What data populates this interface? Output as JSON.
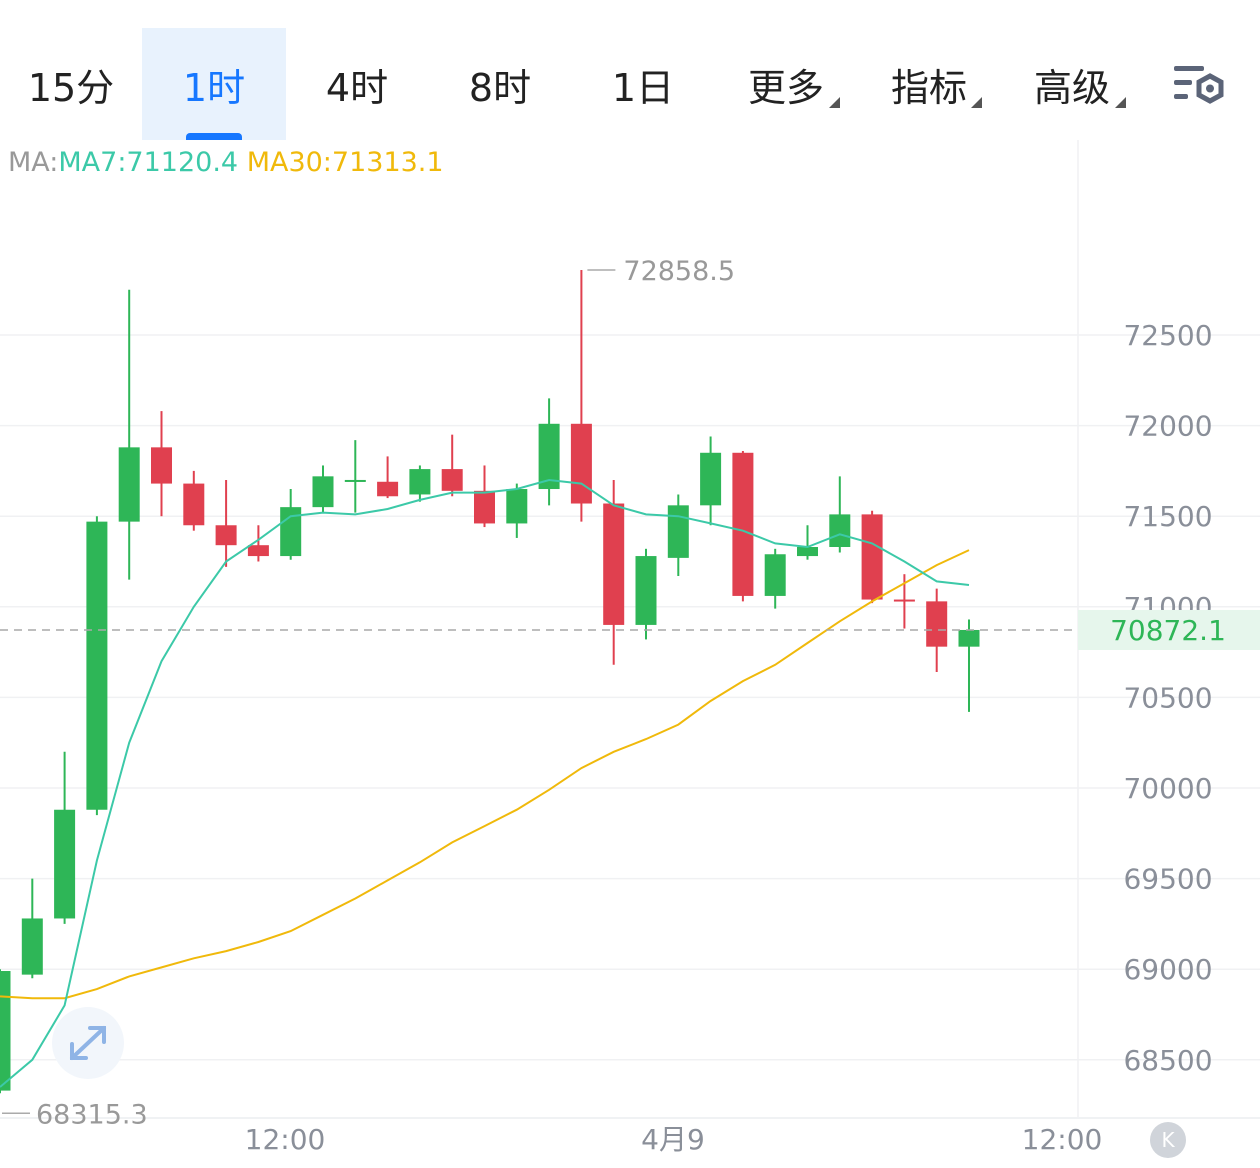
{
  "tabs": [
    {
      "label": "15分",
      "active": false,
      "dropdown": false
    },
    {
      "label": "1时",
      "active": true,
      "dropdown": false
    },
    {
      "label": "4时",
      "active": false,
      "dropdown": false
    },
    {
      "label": "8时",
      "active": false,
      "dropdown": false
    },
    {
      "label": "1日",
      "active": false,
      "dropdown": false
    },
    {
      "label": "更多",
      "active": false,
      "dropdown": true
    },
    {
      "label": "指标",
      "active": false,
      "dropdown": true
    },
    {
      "label": "高级",
      "active": false,
      "dropdown": true
    }
  ],
  "icons": {
    "settings": "chart-settings-icon",
    "expand": "expand-icon",
    "k": "k-logo-icon"
  },
  "ma": {
    "label": "MA:",
    "ma7": "MA7:71120.4",
    "ma30": "MA30:71313.1"
  },
  "colors": {
    "up": "#2eb657",
    "down": "#e0404f",
    "ma7": "#3cc9a8",
    "ma30": "#f0b90b",
    "accent": "#1677ff",
    "current_price_bg": "#e6f6ec"
  },
  "chart_data": {
    "type": "candlestick",
    "ylim": [
      68150,
      73000
    ],
    "y_ticks": [
      68500,
      69000,
      69500,
      70000,
      70500,
      71000,
      71500,
      72000,
      72500
    ],
    "x_labels": [
      "12:00",
      "4月9",
      "12:00"
    ],
    "current_price": "70872.1",
    "high_label": "72858.5",
    "low_label": "68315.3",
    "candles": [
      {
        "o": 68330,
        "h": 69000,
        "l": 68315.3,
        "c": 68990
      },
      {
        "o": 68970,
        "h": 69500,
        "l": 68950,
        "c": 69280
      },
      {
        "o": 69280,
        "h": 70200,
        "l": 69250,
        "c": 69880
      },
      {
        "o": 69880,
        "h": 71500,
        "l": 69850,
        "c": 71470
      },
      {
        "o": 71470,
        "h": 72750,
        "l": 71150,
        "c": 71880
      },
      {
        "o": 71880,
        "h": 72080,
        "l": 71500,
        "c": 71680
      },
      {
        "o": 71680,
        "h": 71750,
        "l": 71420,
        "c": 71450
      },
      {
        "o": 71450,
        "h": 71700,
        "l": 71220,
        "c": 71340
      },
      {
        "o": 71340,
        "h": 71450,
        "l": 71250,
        "c": 71280
      },
      {
        "o": 71280,
        "h": 71650,
        "l": 71260,
        "c": 71550
      },
      {
        "o": 71550,
        "h": 71780,
        "l": 71520,
        "c": 71720
      },
      {
        "o": 71700,
        "h": 71920,
        "l": 71520,
        "c": 71700
      },
      {
        "o": 71690,
        "h": 71830,
        "l": 71600,
        "c": 71610
      },
      {
        "o": 71620,
        "h": 71780,
        "l": 71580,
        "c": 71760
      },
      {
        "o": 71760,
        "h": 71950,
        "l": 71610,
        "c": 71640
      },
      {
        "o": 71640,
        "h": 71780,
        "l": 71440,
        "c": 71460
      },
      {
        "o": 71460,
        "h": 71680,
        "l": 71380,
        "c": 71650
      },
      {
        "o": 71650,
        "h": 72150,
        "l": 71560,
        "c": 72010
      },
      {
        "o": 72010,
        "h": 72858.5,
        "l": 71470,
        "c": 71570
      },
      {
        "o": 71570,
        "h": 71700,
        "l": 70680,
        "c": 70900
      },
      {
        "o": 70900,
        "h": 71320,
        "l": 70820,
        "c": 71280
      },
      {
        "o": 71270,
        "h": 71620,
        "l": 71170,
        "c": 71560
      },
      {
        "o": 71560,
        "h": 71940,
        "l": 71450,
        "c": 71850
      },
      {
        "o": 71850,
        "h": 71860,
        "l": 71030,
        "c": 71060
      },
      {
        "o": 71060,
        "h": 71320,
        "l": 70990,
        "c": 71290
      },
      {
        "o": 71280,
        "h": 71450,
        "l": 71260,
        "c": 71330
      },
      {
        "o": 71330,
        "h": 71720,
        "l": 71300,
        "c": 71510
      },
      {
        "o": 71510,
        "h": 71530,
        "l": 71020,
        "c": 71040
      },
      {
        "o": 71040,
        "h": 71180,
        "l": 70880,
        "c": 71030
      },
      {
        "o": 71030,
        "h": 71100,
        "l": 70640,
        "c": 70780
      },
      {
        "o": 70780,
        "h": 70930,
        "l": 70420,
        "c": 70872.1
      }
    ],
    "ma7": [
      68350,
      68500,
      68800,
      69600,
      70250,
      70700,
      71000,
      71250,
      71370,
      71500,
      71520,
      71510,
      71540,
      71590,
      71630,
      71630,
      71650,
      71700,
      71680,
      71560,
      71510,
      71500,
      71460,
      71420,
      71350,
      71330,
      71400,
      71350,
      71250,
      71140,
      71120.4
    ],
    "ma30": [
      68850,
      68840,
      68840,
      68890,
      68960,
      69010,
      69060,
      69100,
      69150,
      69210,
      69300,
      69390,
      69490,
      69590,
      69700,
      69790,
      69880,
      69990,
      70110,
      70200,
      70270,
      70350,
      70480,
      70590,
      70680,
      70800,
      70920,
      71030,
      71130,
      71230,
      71313.1
    ]
  }
}
